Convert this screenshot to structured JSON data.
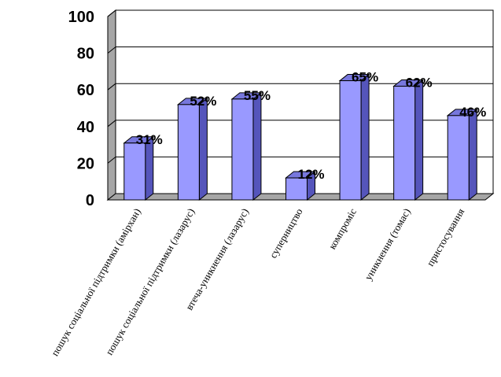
{
  "chart_data": {
    "type": "bar",
    "categories": [
      "пошук соціальної підтримки (амірхан)",
      "пошук соціальної підтримки (лазарус)",
      "втеча-уникнення (лазарус)",
      "суперництво",
      "компроміс",
      "уникнення (томас)",
      "пристосування"
    ],
    "values": [
      31,
      52,
      55,
      12,
      65,
      62,
      46
    ],
    "data_labels": [
      "31%",
      "52%",
      "55%",
      "12%",
      "65%",
      "62%",
      "46%"
    ],
    "yticks": [
      "0",
      "20",
      "40",
      "60",
      "80",
      "100"
    ],
    "ylim": [
      0,
      100
    ],
    "title": "",
    "xlabel": "",
    "ylabel": "",
    "grid": true,
    "legend": "none",
    "colors": {
      "bar_front": "#9999ff",
      "bar_side": "#5555bb",
      "bar_top": "#7777dd",
      "back_wall": "#ffffff",
      "side_wall": "#a6a6a6",
      "floor": "#a6a6a6",
      "grid": "#000000"
    }
  }
}
